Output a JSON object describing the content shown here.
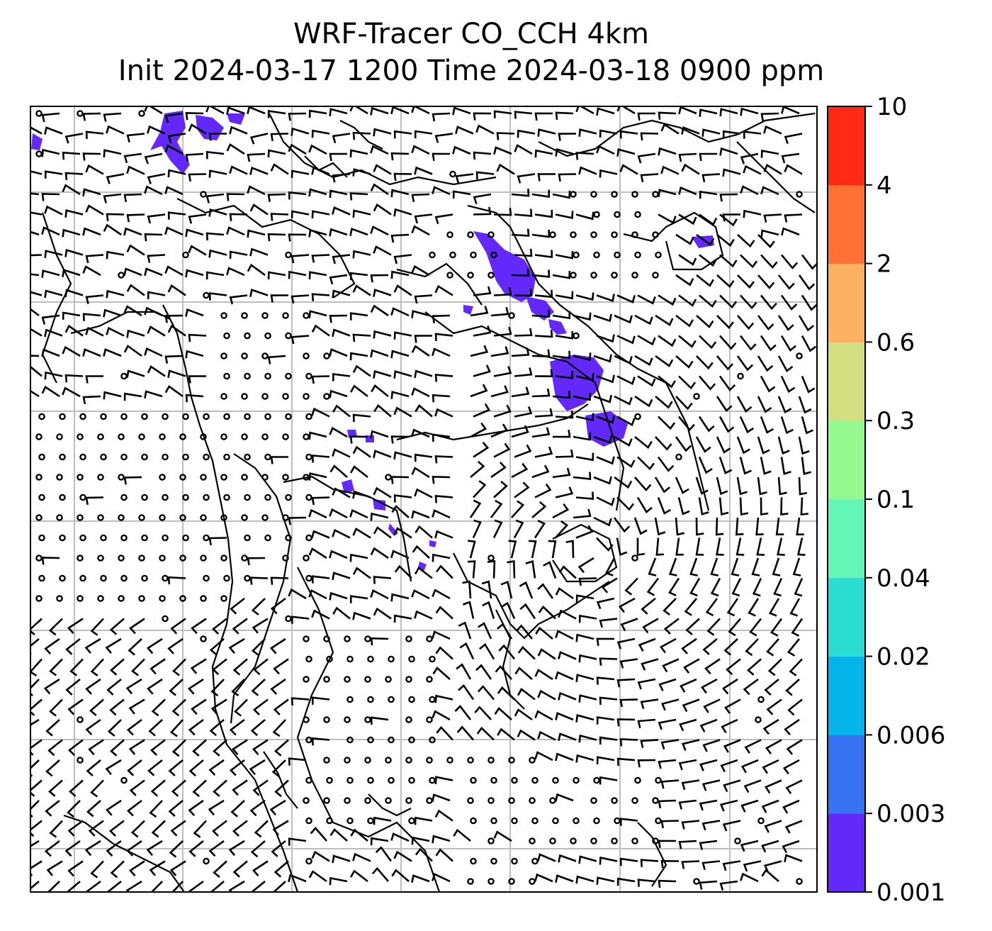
{
  "title": {
    "line1": "WRF-Tracer CO_CCH 4km",
    "line2": "Init 2024-03-17 1200 Time 2024-03-18 0900 ppm"
  },
  "colorbar": {
    "levels": [
      "0.001",
      "0.003",
      "0.006",
      "0.02",
      "0.04",
      "0.1",
      "0.3",
      "0.6",
      "2",
      "4",
      "10"
    ],
    "colors": [
      "#6229fa",
      "#3672f2",
      "#04b4eb",
      "#2adcd1",
      "#63f6b6",
      "#96f98f",
      "#d1df80",
      "#fdb061",
      "#ff7034",
      "#ff2a15"
    ]
  },
  "map": {
    "gridline_color": "#bdbdbd",
    "plume_color": "#6229fa",
    "calm_marker": "circle",
    "barb_color": "#000000"
  }
}
